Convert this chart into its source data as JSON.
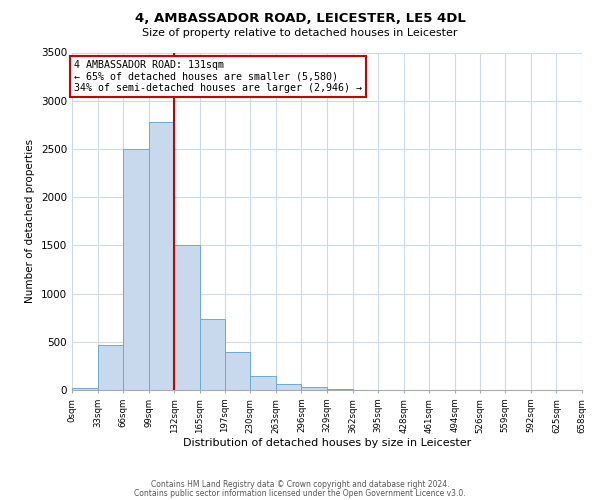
{
  "title": "4, AMBASSADOR ROAD, LEICESTER, LE5 4DL",
  "subtitle": "Size of property relative to detached houses in Leicester",
  "xlabel": "Distribution of detached houses by size in Leicester",
  "ylabel": "Number of detached properties",
  "bar_edges": [
    0,
    33,
    66,
    99,
    132,
    165,
    197,
    230,
    263,
    296,
    329,
    362,
    395,
    428,
    461,
    494,
    526,
    559,
    592,
    625,
    658
  ],
  "bar_heights": [
    20,
    470,
    2500,
    2780,
    1500,
    740,
    390,
    150,
    60,
    30,
    15,
    0,
    0,
    0,
    0,
    0,
    0,
    0,
    0,
    0
  ],
  "bar_color": "#c8d9ee",
  "bar_edge_color": "#6aaad4",
  "vline_x": 132,
  "vline_color": "#cc0000",
  "annotation_text": "4 AMBASSADOR ROAD: 131sqm\n← 65% of detached houses are smaller (5,580)\n34% of semi-detached houses are larger (2,946) →",
  "annotation_box_color": "#ffffff",
  "annotation_box_edge": "#cc0000",
  "ylim": [
    0,
    3500
  ],
  "yticks": [
    0,
    500,
    1000,
    1500,
    2000,
    2500,
    3000,
    3500
  ],
  "xtick_labels": [
    "0sqm",
    "33sqm",
    "66sqm",
    "99sqm",
    "132sqm",
    "165sqm",
    "197sqm",
    "230sqm",
    "263sqm",
    "296sqm",
    "329sqm",
    "362sqm",
    "395sqm",
    "428sqm",
    "461sqm",
    "494sqm",
    "526sqm",
    "559sqm",
    "592sqm",
    "625sqm",
    "658sqm"
  ],
  "footnote1": "Contains HM Land Registry data © Crown copyright and database right 2024.",
  "footnote2": "Contains public sector information licensed under the Open Government Licence v3.0.",
  "bg_color": "#ffffff",
  "grid_color": "#ccd9e8"
}
